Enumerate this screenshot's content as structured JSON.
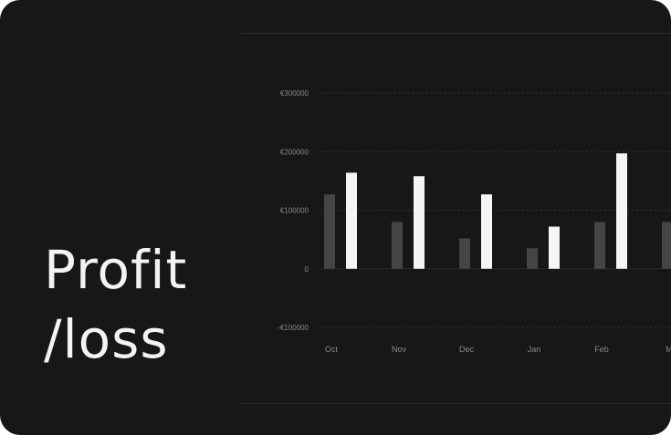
{
  "title_lines": [
    "Profit",
    "/loss"
  ],
  "colors": {
    "background": "#171717",
    "grid": "#333333",
    "zero_line": "#2a2a2a",
    "series_dark": "#454545",
    "series_light": "#f5f5f5",
    "text": "#8a8a8a"
  },
  "chart_data": {
    "type": "bar",
    "title": "Profit/loss",
    "categories": [
      "Oct",
      "Nov",
      "Dec",
      "Jan",
      "Feb",
      "M"
    ],
    "series": [
      {
        "values": [
          127000,
          80000,
          52000,
          35000,
          80000,
          80000
        ]
      },
      {
        "values": [
          164000,
          158000,
          127000,
          72000,
          197000,
          null
        ]
      }
    ],
    "ylim": [
      -100000,
      300000
    ],
    "yticks": [
      300000,
      200000,
      100000,
      0,
      -100000
    ],
    "ytick_labels": [
      "€300000",
      "€200000",
      "€100000",
      "0",
      "-€100000"
    ],
    "grid": true,
    "legend": "none"
  }
}
